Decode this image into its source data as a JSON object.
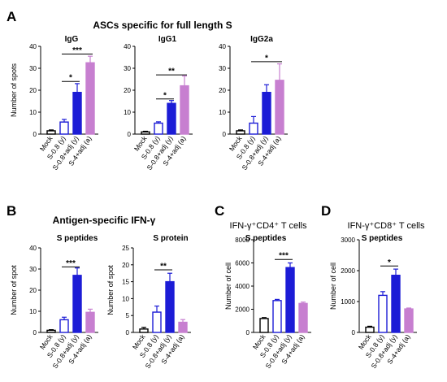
{
  "figure": {
    "panel_letters": [
      "A",
      "B",
      "C",
      "D"
    ],
    "section_titles": {
      "A": "ASCs specific for full length S",
      "B": "Antigen-specific IFN-γ"
    },
    "categories": [
      "Mock",
      "S-0.8 (y)",
      "S-0.8+adj (y)",
      "S-4+adj (a)"
    ],
    "colors": {
      "mock": "#000000",
      "s08": "#1c1cd6",
      "s08adj": "#1c1cd6",
      "s4adj": "#c77fd0"
    }
  },
  "chart_data": [
    {
      "id": "A-IgG",
      "panel": "A",
      "type": "bar",
      "title": "IgG",
      "ylabel": "Number of spots",
      "ylim": [
        0,
        40
      ],
      "yticks": [
        0,
        10,
        20,
        30,
        40
      ],
      "categories": [
        "Mock",
        "S-0.8 (y)",
        "S-0.8+adj (y)",
        "S-4+adj (a)"
      ],
      "values": [
        1.5,
        5.5,
        19,
        32.5
      ],
      "errors": [
        0.4,
        1.2,
        4,
        3
      ],
      "significance": [
        {
          "from": 1,
          "to": 2,
          "label": "*",
          "y": 24
        },
        {
          "from": 1,
          "to": 3,
          "label": "***",
          "y": 36.5
        }
      ]
    },
    {
      "id": "A-IgG1",
      "panel": "A",
      "type": "bar",
      "title": "IgG1",
      "ylabel": "",
      "ylim": [
        0,
        40
      ],
      "yticks": [
        0,
        10,
        20,
        30,
        40
      ],
      "categories": [
        "Mock",
        "S-0.8 (y)",
        "S-0.8+adj (y)",
        "S-4+adj (a)"
      ],
      "values": [
        1,
        5,
        14,
        22
      ],
      "errors": [
        0.3,
        0.6,
        1.3,
        4.5
      ],
      "significance": [
        {
          "from": 1,
          "to": 2,
          "label": "*",
          "y": 16
        },
        {
          "from": 1,
          "to": 3,
          "label": "**",
          "y": 27
        }
      ]
    },
    {
      "id": "A-IgG2a",
      "panel": "A",
      "type": "bar",
      "title": "IgG2a",
      "ylabel": "",
      "ylim": [
        0,
        40
      ],
      "yticks": [
        0,
        10,
        20,
        30,
        40
      ],
      "categories": [
        "Mock",
        "S-0.8 (y)",
        "S-0.8+adj (y)",
        "S-4+adj (a)"
      ],
      "values": [
        1.5,
        5,
        19,
        24.5
      ],
      "errors": [
        0.4,
        3,
        3.5,
        7.5
      ],
      "significance": [
        {
          "from": 1,
          "to": 3,
          "label": "*",
          "y": 33
        }
      ]
    },
    {
      "id": "B-S-peptides",
      "panel": "B",
      "type": "bar",
      "title": "S peptides",
      "ylabel": "Number of spot",
      "ylim": [
        0,
        40
      ],
      "yticks": [
        0,
        10,
        20,
        30,
        40
      ],
      "categories": [
        "Mock",
        "S-0.8 (y)",
        "S-0.8+adj (y)",
        "S-4+adj (a)"
      ],
      "values": [
        1,
        6,
        27,
        9.5
      ],
      "errors": [
        0.3,
        1.2,
        3.5,
        1.5
      ],
      "significance": [
        {
          "from": 1,
          "to": 2,
          "label": "***",
          "y": 31
        }
      ]
    },
    {
      "id": "B-S-protein",
      "panel": "B",
      "type": "bar",
      "title": "S protein",
      "ylabel": "Number of spot",
      "ylim": [
        0,
        25
      ],
      "yticks": [
        0,
        5,
        10,
        15,
        20,
        25
      ],
      "categories": [
        "Mock",
        "S-0.8 (y)",
        "S-0.8+adj (y)",
        "S-4+adj (a)"
      ],
      "values": [
        1,
        6,
        15,
        3
      ],
      "errors": [
        0.5,
        1.8,
        2.5,
        0.8
      ],
      "significance": [
        {
          "from": 1,
          "to": 2,
          "label": "**",
          "y": 18.5
        }
      ]
    },
    {
      "id": "C-CD4",
      "panel": "C",
      "type": "bar",
      "title": "IFN-γ⁺CD4⁺ T cells",
      "subtitle": "S peptides",
      "ylabel": "Number of cell",
      "ylim": [
        0,
        8000
      ],
      "yticks": [
        0,
        2000,
        4000,
        6000,
        8000
      ],
      "categories": [
        "Mock",
        "S-0.8 (y)",
        "S-0.8+adj (y)",
        "S-4+adj (a)"
      ],
      "values": [
        1200,
        2750,
        5600,
        2500
      ],
      "errors": [
        80,
        100,
        400,
        120
      ],
      "significance": [
        {
          "from": 1,
          "to": 2,
          "label": "***",
          "y": 6300
        }
      ]
    },
    {
      "id": "D-CD8",
      "panel": "D",
      "type": "bar",
      "title": "IFN-γ⁺CD8⁺ T cells",
      "subtitle": "S peptides",
      "ylabel": "Number of cell",
      "ylim": [
        0,
        3000
      ],
      "yticks": [
        0,
        1000,
        2000,
        3000
      ],
      "categories": [
        "Mock",
        "S-0.8 (y)",
        "S-0.8+adj (y)",
        "S-4+adj (a)"
      ],
      "values": [
        170,
        1200,
        1850,
        760
      ],
      "errors": [
        30,
        120,
        200,
        30
      ],
      "significance": [
        {
          "from": 1,
          "to": 2,
          "label": "*",
          "y": 2150
        }
      ]
    }
  ]
}
